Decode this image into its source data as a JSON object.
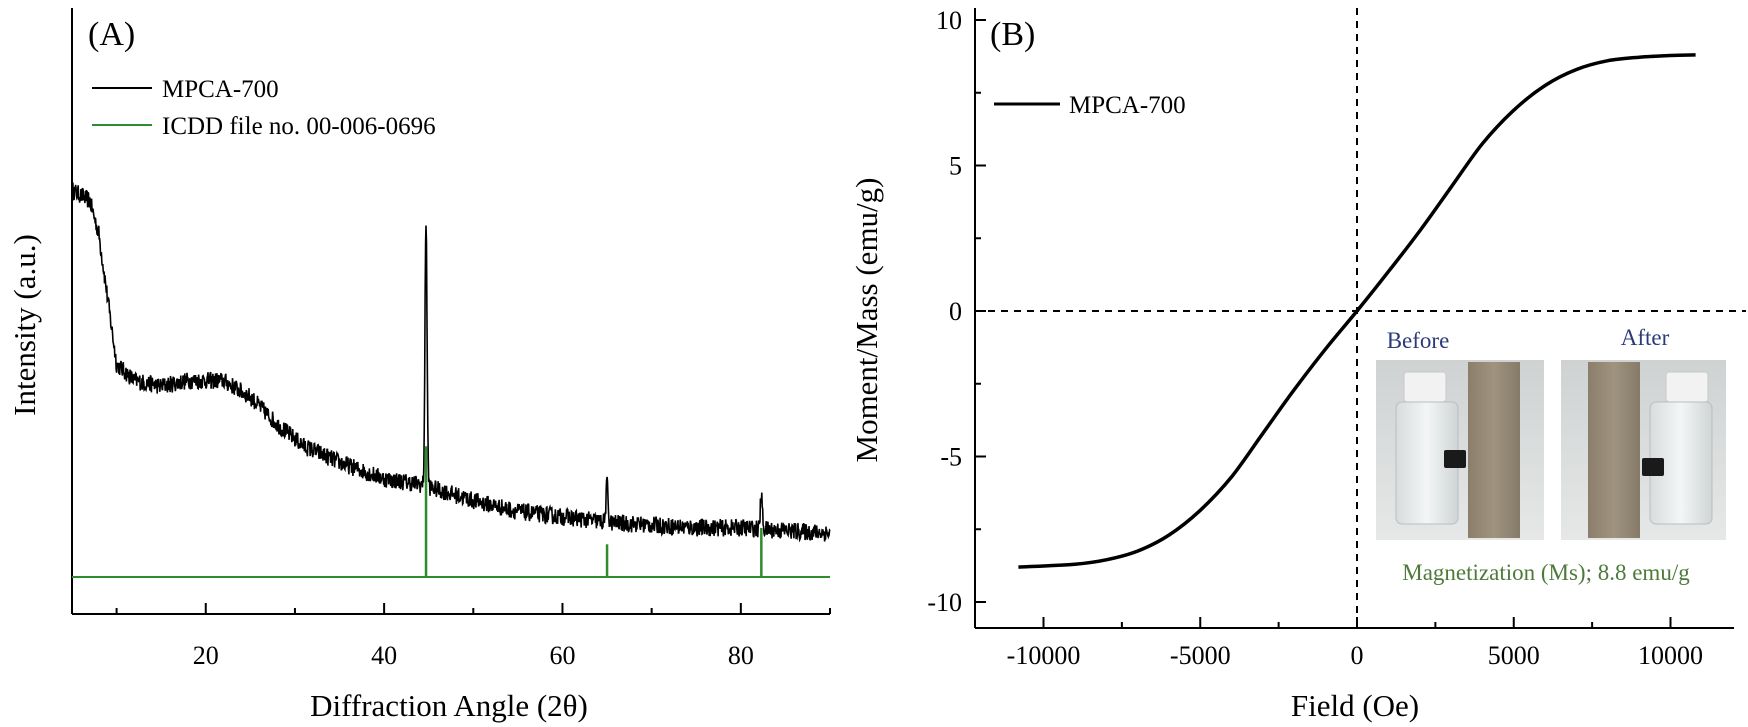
{
  "chart_data": [
    {
      "type": "line",
      "panel": "(A)",
      "xlabel": "Diffraction Angle (2θ)",
      "ylabel": "Intensity (a.u.)",
      "xlim": [
        5,
        90
      ],
      "xticks": [
        20,
        40,
        60,
        80
      ],
      "xtick_labels": [
        "20",
        "40",
        "60",
        "80"
      ],
      "legend": {
        "position": "top-left",
        "entries": [
          {
            "label": "MPCA-700",
            "color": "#000000"
          },
          {
            "label": "ICDD file no. 00-006-0696",
            "color": "#2e8b2e"
          }
        ]
      },
      "series": [
        {
          "name": "MPCA-700",
          "color": "#000000",
          "baseline_points": [
            [
              5,
              78
            ],
            [
              7,
              76
            ],
            [
              8,
              70
            ],
            [
              9,
              58
            ],
            [
              10,
              46
            ],
            [
              12,
              43
            ],
            [
              15,
              42
            ],
            [
              18,
              43
            ],
            [
              22,
              43
            ],
            [
              25,
              40
            ],
            [
              28,
              35
            ],
            [
              31,
              31
            ],
            [
              35,
              28
            ],
            [
              40,
              25
            ],
            [
              44,
              24
            ],
            [
              46,
              23
            ],
            [
              50,
              21
            ],
            [
              55,
              19
            ],
            [
              60,
              18
            ],
            [
              65,
              17
            ],
            [
              70,
              16.5
            ],
            [
              75,
              16
            ],
            [
              80,
              16
            ],
            [
              85,
              15.5
            ],
            [
              90,
              15
            ]
          ],
          "peaks": [
            {
              "x": 44.7,
              "height": 49
            },
            {
              "x": 65.0,
              "height": 7
            },
            {
              "x": 82.3,
              "height": 6
            }
          ]
        },
        {
          "name": "ICDD file no. 00-006-0696",
          "color": "#2e8b2e",
          "type": "stick",
          "baseline": 0,
          "sticks": [
            {
              "x": 44.7,
              "value": 24
            },
            {
              "x": 65.0,
              "value": 6
            },
            {
              "x": 82.3,
              "value": 9
            }
          ]
        }
      ]
    },
    {
      "type": "line",
      "panel": "(B)",
      "xlabel": "Field (Oe)",
      "ylabel": "Moment/Mass (emu/g)",
      "xlim": [
        -12000,
        12000
      ],
      "ylim": [
        -10.5,
        10.5
      ],
      "xticks": [
        -10000,
        -5000,
        0,
        5000,
        10000
      ],
      "xtick_labels": [
        "-10000",
        "-5000",
        "0",
        "5000",
        "10000"
      ],
      "yticks": [
        -10,
        -5,
        0,
        5,
        10
      ],
      "ytick_labels": [
        "-10",
        "-5",
        "0",
        "5",
        "10"
      ],
      "legend": {
        "position": "top-left",
        "entries": [
          {
            "label": "MPCA-700",
            "color": "#000000"
          }
        ]
      },
      "series": [
        {
          "name": "MPCA-700",
          "color": "#000000",
          "points": [
            [
              -10800,
              -8.8
            ],
            [
              -9000,
              -8.7
            ],
            [
              -8000,
              -8.55
            ],
            [
              -7000,
              -8.25
            ],
            [
              -6000,
              -7.7
            ],
            [
              -5000,
              -6.85
            ],
            [
              -4000,
              -5.7
            ],
            [
              -3000,
              -4.2
            ],
            [
              -2000,
              -2.7
            ],
            [
              -1000,
              -1.3
            ],
            [
              0,
              0
            ],
            [
              1000,
              1.35
            ],
            [
              2000,
              2.75
            ],
            [
              3000,
              4.25
            ],
            [
              4000,
              5.75
            ],
            [
              5000,
              6.9
            ],
            [
              6000,
              7.75
            ],
            [
              7000,
              8.3
            ],
            [
              8000,
              8.6
            ],
            [
              9000,
              8.72
            ],
            [
              10000,
              8.78
            ],
            [
              10800,
              8.8
            ]
          ]
        }
      ],
      "reference_lines": {
        "x": 0,
        "y": 0
      },
      "inset": {
        "before_label": "Before",
        "after_label": "After",
        "caption": "Magnetization (Ms);  8.8 emu/g"
      }
    }
  ]
}
